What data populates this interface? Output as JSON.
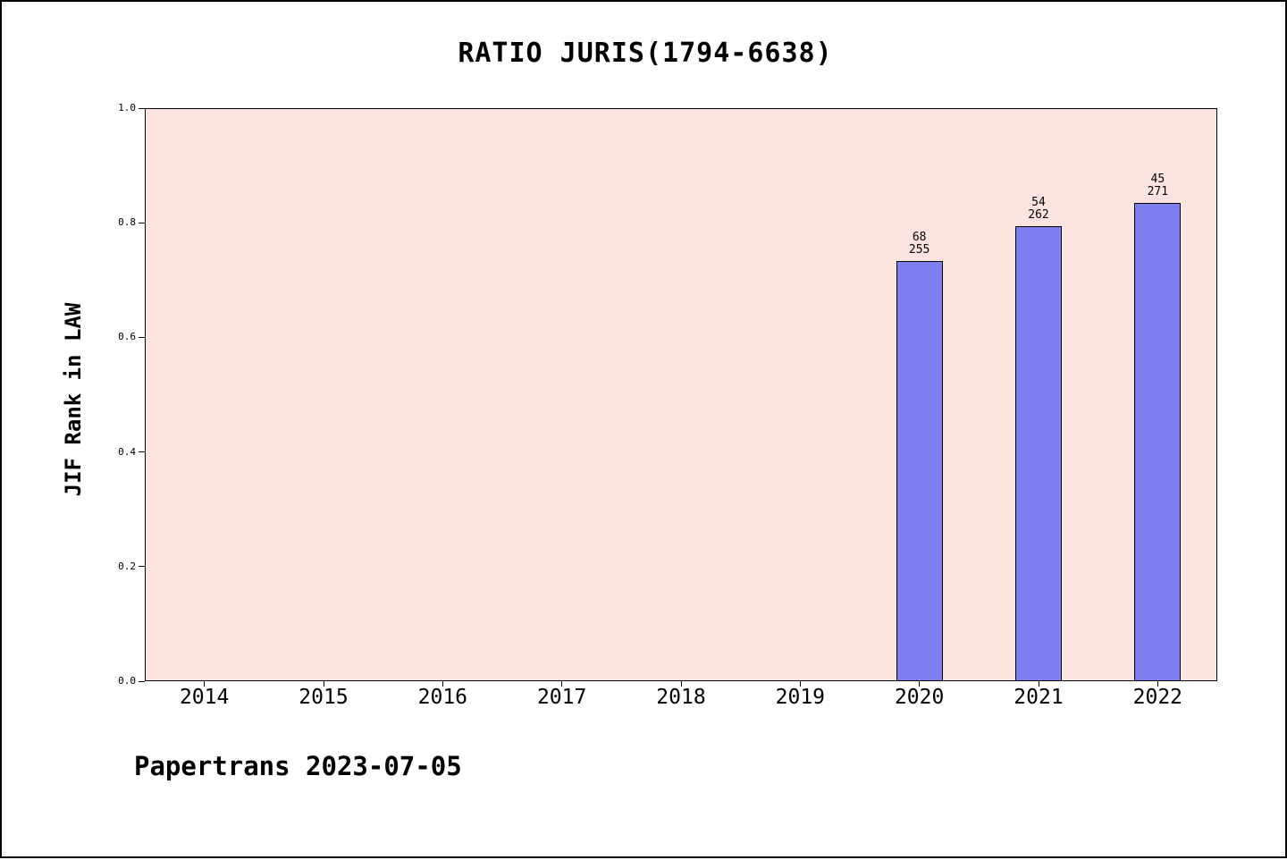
{
  "chart": {
    "title": "RATIO JURIS(1794-6638)"
  },
  "footer": {
    "text": "Papertrans 2023-07-05"
  },
  "chart_data": {
    "type": "bar",
    "title": "RATIO JURIS(1794-6638)",
    "xlabel": "",
    "ylabel": "JIF Rank in LAW",
    "categories": [
      "2014",
      "2015",
      "2016",
      "2017",
      "2018",
      "2019",
      "2020",
      "2021",
      "2022"
    ],
    "values": [
      null,
      null,
      null,
      null,
      null,
      null,
      0.733,
      0.794,
      0.834
    ],
    "bar_labels": [
      null,
      null,
      null,
      null,
      null,
      null,
      [
        "68",
        "255"
      ],
      [
        "54",
        "262"
      ],
      [
        "45",
        "271"
      ]
    ],
    "ylim": [
      0.0,
      1.0
    ],
    "yticks": [
      "0.0",
      "0.2",
      "0.4",
      "0.6",
      "0.8",
      "1.0"
    ],
    "grid": false,
    "legend": null,
    "colors": {
      "bar_fill": "#7e7ef0",
      "bar_edge": "#000000",
      "plot_bg": "#fde4e1",
      "page_bg": "#ffffff",
      "text": "#000000"
    }
  }
}
